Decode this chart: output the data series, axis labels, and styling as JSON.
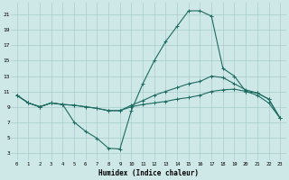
{
  "xlabel": "Humidex (Indice chaleur)",
  "xlim": [
    -0.5,
    23.5
  ],
  "ylim": [
    2,
    22.5
  ],
  "yticks": [
    3,
    5,
    7,
    9,
    11,
    13,
    15,
    17,
    19,
    21
  ],
  "xticks": [
    0,
    1,
    2,
    3,
    4,
    5,
    6,
    7,
    8,
    9,
    10,
    11,
    12,
    13,
    14,
    15,
    16,
    17,
    18,
    19,
    20,
    21,
    22,
    23
  ],
  "bg_color": "#cde8e6",
  "grid_color": "#a8ccca",
  "line_color": "#1e6b62",
  "curves": [
    [
      10.5,
      9.5,
      9.0,
      9.5,
      9.3,
      7.0,
      5.8,
      4.9,
      3.6,
      3.5,
      8.5,
      12.0,
      15.0,
      17.5,
      19.5,
      21.5,
      21.5,
      20.8,
      14.0,
      13.0,
      11.0,
      10.5,
      9.5,
      7.5
    ],
    [
      10.5,
      9.5,
      9.0,
      9.5,
      9.3,
      9.2,
      9.0,
      8.8,
      8.5,
      8.5,
      9.0,
      9.3,
      9.5,
      9.7,
      10.0,
      10.2,
      10.5,
      11.0,
      11.2,
      11.3,
      11.0,
      10.8,
      10.0,
      7.5
    ],
    [
      10.5,
      9.5,
      9.0,
      9.5,
      9.3,
      9.2,
      9.0,
      8.8,
      8.5,
      8.5,
      9.2,
      9.8,
      10.5,
      11.0,
      11.5,
      12.0,
      12.3,
      13.0,
      12.8,
      12.0,
      11.2,
      10.8,
      10.0,
      7.5
    ]
  ]
}
